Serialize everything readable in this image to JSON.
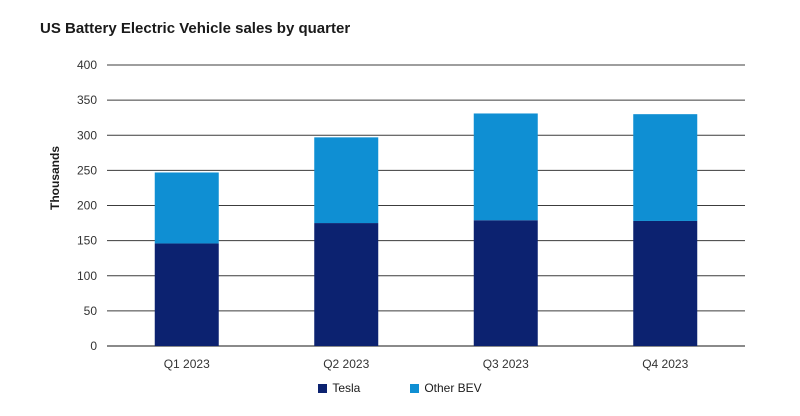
{
  "chart_data": {
    "type": "bar",
    "stacked": true,
    "title": "US Battery Electric Vehicle sales by quarter",
    "ylabel": "Thousands",
    "xlabel": "",
    "categories": [
      "Q1 2023",
      "Q2 2023",
      "Q3 2023",
      "Q4 2023"
    ],
    "series": [
      {
        "name": "Tesla",
        "values": [
          146,
          175,
          179,
          178
        ],
        "color": "#0c2270"
      },
      {
        "name": "Other BEV",
        "values": [
          101,
          122,
          152,
          152
        ],
        "color": "#0f8fd3"
      }
    ],
    "ylim": [
      0,
      400
    ],
    "yticks": [
      "0",
      "50",
      "100",
      "150",
      "200",
      "250",
      "300",
      "350",
      "400"
    ],
    "grid": true,
    "legend_position": "bottom-center"
  }
}
